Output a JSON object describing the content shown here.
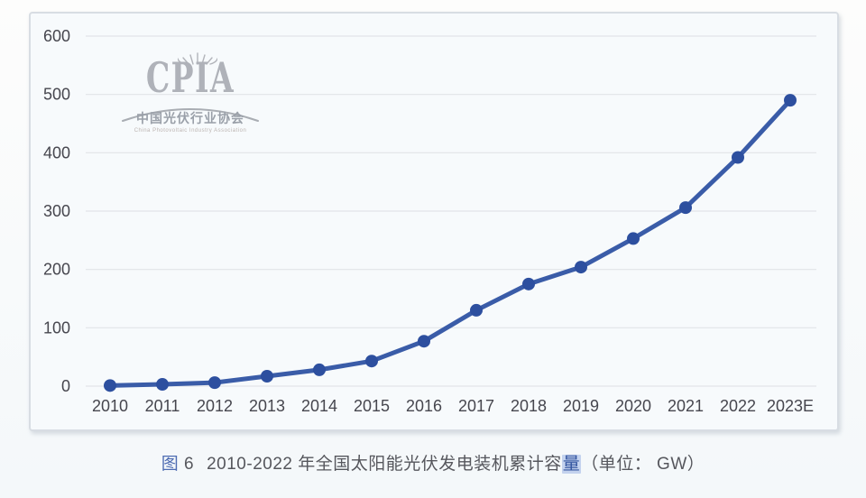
{
  "panel": {
    "background": "#f7fafc",
    "border_color": "#d8dde3"
  },
  "watermark": {
    "acronym": "CPIA",
    "org_cn": "中国光伏行业协会",
    "org_en": "China Photovoltaic Industry Association",
    "color": "#afb2b9"
  },
  "chart_data": {
    "type": "line",
    "categories": [
      "2010",
      "2011",
      "2012",
      "2013",
      "2014",
      "2015",
      "2016",
      "2017",
      "2018",
      "2019",
      "2020",
      "2021",
      "2022",
      "2023E"
    ],
    "values": [
      1,
      3,
      6,
      17,
      28,
      43,
      77,
      130,
      175,
      204,
      253,
      306,
      392,
      490
    ],
    "title": "2010-2022 年全国太阳能光伏发电装机累计容量",
    "unit": "GW",
    "xlabel": "",
    "ylabel": "",
    "ylim": [
      0,
      600
    ],
    "yticks": [
      0,
      100,
      200,
      300,
      400,
      500,
      600
    ],
    "grid": true,
    "legend_position": "none",
    "line_color": "#3a5ca8",
    "marker_color": "#2d4f9f",
    "grid_color": "#e2e4e8",
    "tick_color": "#46464e"
  },
  "caption": {
    "prefix": "图",
    "number": "6",
    "body": "2010-2022 年全国太阳能光伏发电装机累计容",
    "highlight": "量",
    "suffix": "（单位： GW）"
  }
}
